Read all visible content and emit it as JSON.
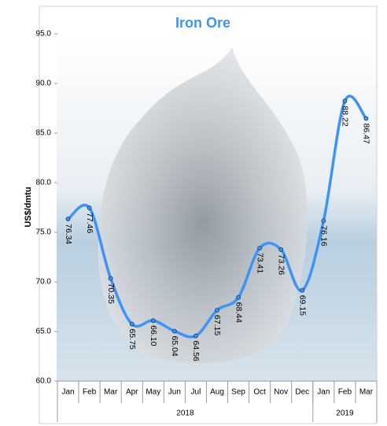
{
  "chart_data": {
    "type": "line",
    "title": "Iron Ore",
    "y_label": "US$/dmtu",
    "categories": [
      "Jan",
      "Feb",
      "Mar",
      "Apr",
      "May",
      "Jun",
      "Jul",
      "Aug",
      "Sep",
      "Oct",
      "Nov",
      "Dec",
      "Jan",
      "Feb",
      "Mar"
    ],
    "groups": [
      {
        "label": "2018",
        "count": 12
      },
      {
        "label": "2019",
        "count": 3
      }
    ],
    "series": [
      {
        "name": "Iron Ore",
        "color": "#3d94f6",
        "values": [
          76.34,
          77.46,
          70.35,
          65.75,
          66.1,
          65.04,
          64.56,
          67.15,
          68.44,
          73.41,
          73.26,
          69.15,
          76.16,
          88.22,
          86.47
        ],
        "value_labels": [
          "76.34",
          "77.46",
          "70.35",
          "65.75",
          "66.10",
          "65.04",
          "64.56",
          "67.15",
          "68.44",
          "73.41",
          "73.26",
          "69.15",
          "76.16",
          "88.22",
          "86.47"
        ]
      }
    ],
    "ylim": [
      60,
      95
    ],
    "yticks": [
      {
        "value": 60,
        "label": "60.0"
      },
      {
        "value": 65,
        "label": "65.0"
      },
      {
        "value": 70,
        "label": "70.0"
      },
      {
        "value": 75,
        "label": "75.0"
      },
      {
        "value": 80,
        "label": "80.0"
      },
      {
        "value": 85,
        "label": "85.0"
      },
      {
        "value": 90,
        "label": "90.0"
      },
      {
        "value": 95,
        "label": "95.0"
      }
    ],
    "grid": false
  }
}
